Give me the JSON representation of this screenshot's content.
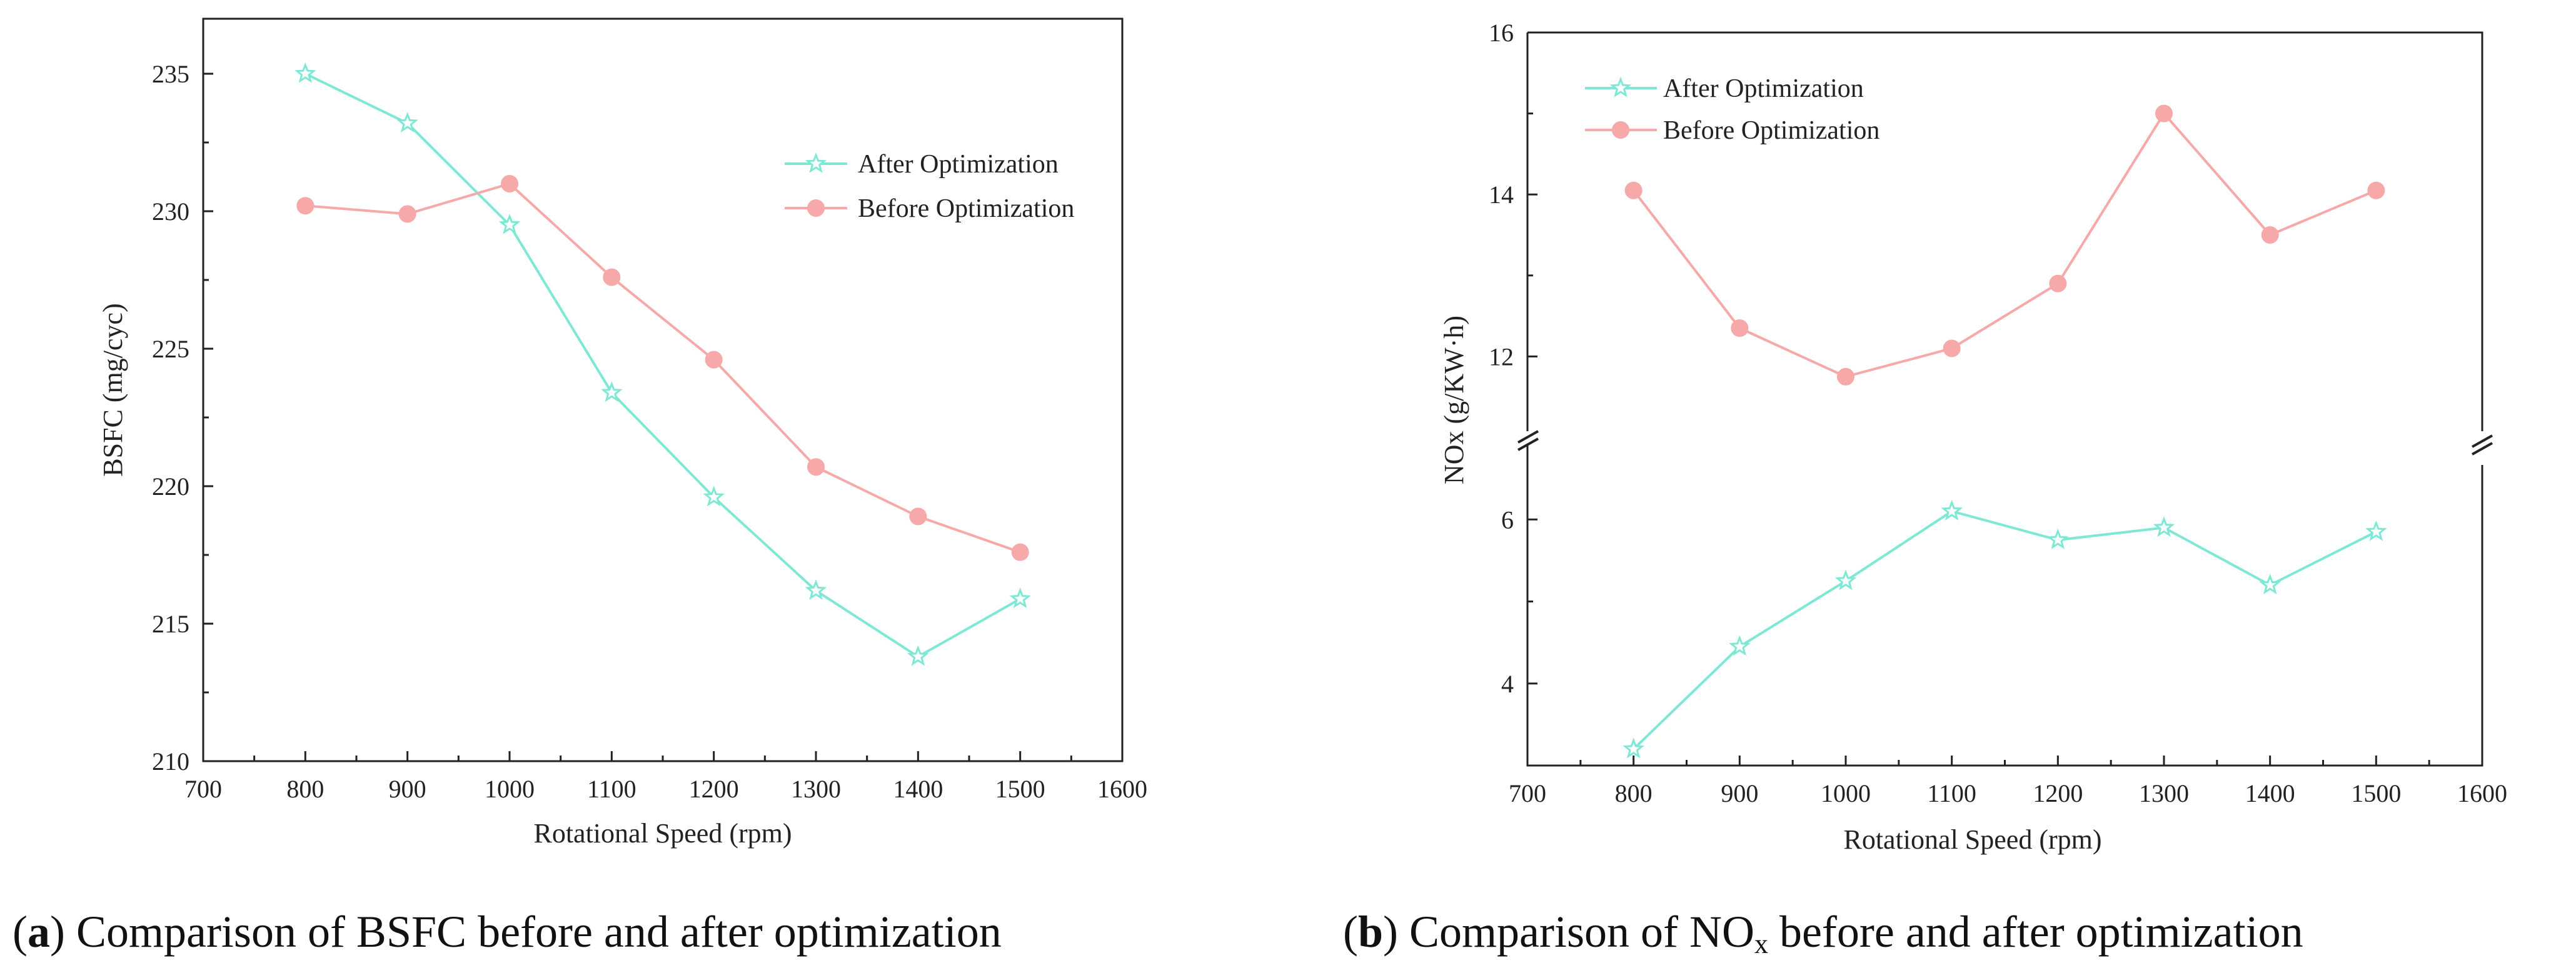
{
  "colors": {
    "after": "#7ee8d4",
    "before": "#f7a8a8"
  },
  "chart_data": [
    {
      "type": "line",
      "title": "",
      "xlabel": "Rotational Speed (rpm)",
      "ylabel": "BSFC (mg/cyc)",
      "xlim": [
        700,
        1600
      ],
      "ylim": [
        210,
        237
      ],
      "xticks": [
        "700",
        "800",
        "900",
        "1000",
        "1100",
        "1200",
        "1300",
        "1400",
        "1500",
        "1600"
      ],
      "yticks": [
        "210",
        "215",
        "220",
        "225",
        "230",
        "235"
      ],
      "x": [
        800,
        900,
        1000,
        1100,
        1200,
        1300,
        1400,
        1500
      ],
      "series": [
        {
          "name": "After Optimization",
          "marker": "star",
          "values": [
            235.0,
            233.2,
            229.5,
            223.4,
            219.6,
            216.2,
            213.8,
            215.9
          ]
        },
        {
          "name": "Before Optimization",
          "marker": "circle",
          "values": [
            230.2,
            229.9,
            231.0,
            227.6,
            224.6,
            220.7,
            218.9,
            217.6
          ]
        }
      ],
      "legend": "top-right",
      "caption": {
        "letter": "a",
        "prefix": "(",
        "close": ")",
        "text": " Comparison of BSFC before and after optimization"
      }
    },
    {
      "type": "line",
      "title": "",
      "xlabel": "Rotational Speed (rpm)",
      "ylabel": "NOx (g/KW·h)",
      "xlim": [
        700,
        1600
      ],
      "broken_y_axis": {
        "lower": [
          3.0,
          7.0
        ],
        "upper": [
          11.0,
          16.0
        ],
        "break_symbol": "//"
      },
      "xticks": [
        "700",
        "800",
        "900",
        "1000",
        "1100",
        "1200",
        "1300",
        "1400",
        "1500",
        "1600"
      ],
      "yticks": [
        "4",
        "6",
        "12",
        "14",
        "16"
      ],
      "x": [
        800,
        900,
        1000,
        1100,
        1200,
        1300,
        1400,
        1500
      ],
      "series": [
        {
          "name": "After Optimization",
          "marker": "star",
          "values": [
            3.2,
            4.45,
            5.25,
            6.1,
            5.75,
            5.9,
            5.2,
            5.85
          ]
        },
        {
          "name": "Before Optimization",
          "marker": "circle",
          "values": [
            14.05,
            12.35,
            11.75,
            12.1,
            12.9,
            15.0,
            13.5,
            14.05
          ]
        }
      ],
      "legend": "top-left",
      "caption": {
        "letter": "b",
        "prefix": "(",
        "close": ")",
        "text": " Comparison of NO",
        "sub": "x",
        "tail": " before and after optimization"
      }
    }
  ]
}
